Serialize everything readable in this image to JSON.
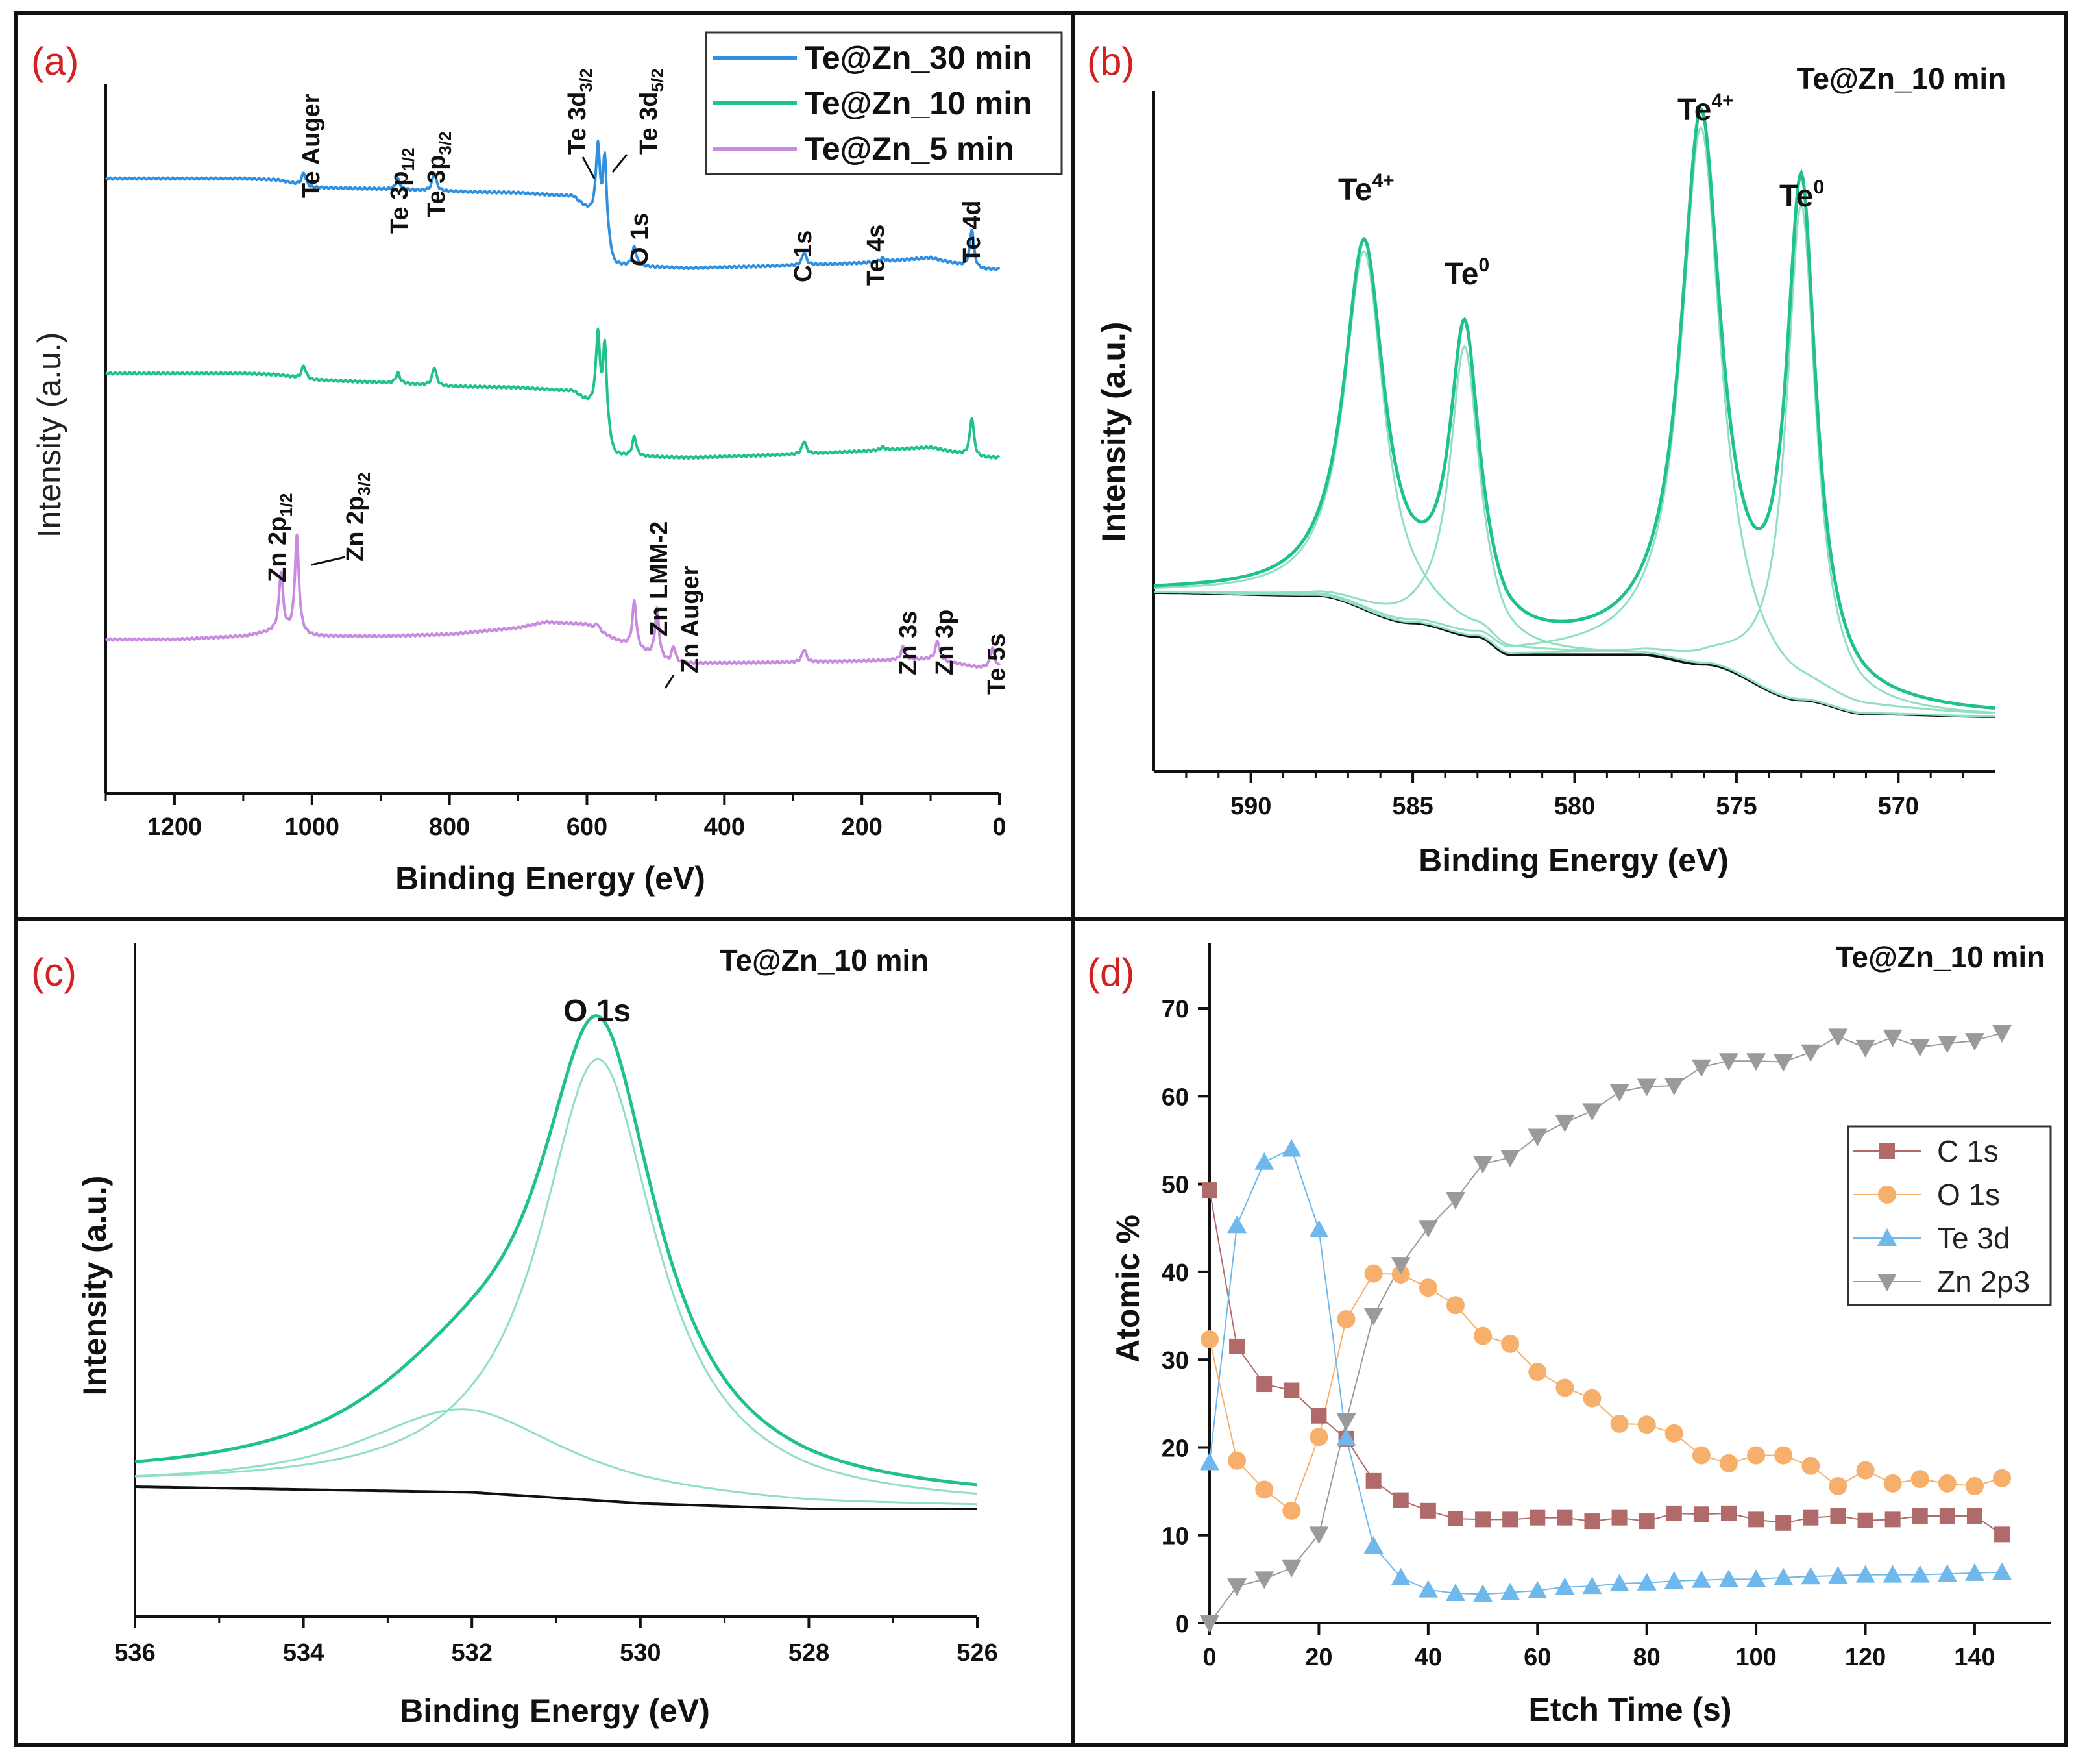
{
  "figure_colors": {
    "te30": "#2f8fe0",
    "te10": "#1fc18c",
    "te5": "#c98be0",
    "comp": "#8fe0bf",
    "bg": "#111111",
    "c1s": "#b06a6a",
    "o1s": "#f6b06c",
    "te3d": "#6fb8ec",
    "zn": "#9a9a9a"
  },
  "chart_data": [
    {
      "id": "a",
      "panel_label": "(a)",
      "type": "line",
      "xlabel": "Binding Energy (eV)",
      "ylabel": "Intensity (a.u.)",
      "x_ticks": [
        "1200",
        "1000",
        "800",
        "600",
        "400",
        "200",
        "0"
      ],
      "xlim": [
        1300,
        0
      ],
      "legend": {
        "position": "top-right",
        "entries": [
          "Te@Zn_30 min",
          "Te@Zn_10 min",
          "Te@Zn_5 min"
        ]
      },
      "series": [
        {
          "name": "Te@Zn_30 min",
          "baseline": [
            [
              1300,
              80
            ],
            [
              1100,
              80
            ],
            [
              1050,
              78
            ],
            [
              1000,
              66
            ],
            [
              900,
              64
            ],
            [
              800,
              60
            ],
            [
              700,
              58
            ],
            [
              620,
              52
            ],
            [
              590,
              20
            ],
            [
              560,
              -55
            ],
            [
              450,
              -58
            ],
            [
              300,
              -54
            ],
            [
              200,
              -50
            ],
            [
              100,
              -42
            ],
            [
              30,
              -60
            ],
            [
              0,
              -60
            ]
          ],
          "peaks": [
            [
              1012,
              20
            ],
            [
              875,
              16
            ],
            [
              822,
              28
            ],
            [
              584,
              120
            ],
            [
              574,
              125
            ],
            [
              531,
              30
            ],
            [
              284,
              20
            ],
            [
              170,
              5
            ],
            [
              40,
              60
            ]
          ]
        },
        {
          "name": "Te@Zn_10 min",
          "baseline": [
            [
              1300,
              70
            ],
            [
              1100,
              70
            ],
            [
              1050,
              68
            ],
            [
              1000,
              60
            ],
            [
              900,
              56
            ],
            [
              800,
              50
            ],
            [
              700,
              48
            ],
            [
              620,
              42
            ],
            [
              590,
              15
            ],
            [
              560,
              -58
            ],
            [
              450,
              -60
            ],
            [
              300,
              -55
            ],
            [
              200,
              -50
            ],
            [
              100,
              -44
            ],
            [
              30,
              -60
            ],
            [
              0,
              -60
            ]
          ],
          "peaks": [
            [
              1012,
              20
            ],
            [
              875,
              16
            ],
            [
              822,
              28
            ],
            [
              584,
              125
            ],
            [
              574,
              130
            ],
            [
              531,
              30
            ],
            [
              284,
              20
            ],
            [
              170,
              5
            ],
            [
              40,
              60
            ]
          ]
        },
        {
          "name": "Te@Zn_5 min",
          "baseline": [
            [
              1300,
              25
            ],
            [
              1200,
              25
            ],
            [
              1100,
              30
            ],
            [
              1050,
              38
            ],
            [
              1000,
              30
            ],
            [
              900,
              30
            ],
            [
              800,
              33
            ],
            [
              700,
              43
            ],
            [
              660,
              52
            ],
            [
              600,
              48
            ],
            [
              560,
              25
            ],
            [
              480,
              -12
            ],
            [
              300,
              -10
            ],
            [
              200,
              -8
            ],
            [
              100,
              -5
            ],
            [
              30,
              -18
            ],
            [
              0,
              -18
            ]
          ],
          "peaks": [
            [
              1045,
              90
            ],
            [
              1022,
              150
            ],
            [
              585,
              10
            ],
            [
              531,
              72
            ],
            [
              498,
              75
            ],
            [
              474,
              25
            ],
            [
              284,
              20
            ],
            [
              140,
              20
            ],
            [
              90,
              30
            ],
            [
              10,
              30
            ]
          ]
        }
      ],
      "annotations_30": [
        "Te Auger",
        "Te 3p1/2",
        "Te 3p3/2",
        "Te 3d3/2",
        "Te 3d5/2",
        "O 1s",
        "C 1s",
        "Te 4s",
        "Te 4d"
      ],
      "annotations_5": [
        "Zn 2p1/2",
        "Zn 2p3/2",
        "Zn LMM-2",
        "Zn Auger",
        "Zn 3s",
        "Zn 3p",
        "Te 5s"
      ]
    },
    {
      "id": "b",
      "panel_label": "(b)",
      "type": "line",
      "title": "Te@Zn_10 min",
      "xlabel": "Binding Energy (eV)",
      "ylabel": "Intensity (a.u.)",
      "x_ticks": [
        "590",
        "585",
        "580",
        "575",
        "570"
      ],
      "xlim": [
        593,
        567
      ],
      "background_steps": [
        [
          593,
          1.0
        ],
        [
          588,
          0.98
        ],
        [
          585,
          0.78
        ],
        [
          583,
          0.68
        ],
        [
          582,
          0.55
        ],
        [
          578,
          0.55
        ],
        [
          576,
          0.48
        ],
        [
          573,
          0.22
        ],
        [
          571,
          0.12
        ],
        [
          567,
          0.1
        ]
      ],
      "peaks": [
        {
          "label": "Te4+",
          "center": 586.5,
          "height": 2.6,
          "width": 0.75
        },
        {
          "label": "Te0",
          "center": 583.4,
          "height": 2.1,
          "width": 0.55
        },
        {
          "label": "Te4+",
          "center": 576.1,
          "height": 3.9,
          "width": 0.75
        },
        {
          "label": "Te0",
          "center": 573.0,
          "height": 3.6,
          "width": 0.55
        }
      ],
      "ylim": [
        0,
        4.8
      ],
      "peak_labels": {
        "te4": "Te",
        "te4_sup": "4+",
        "te0": "Te",
        "te0_sup": "0"
      }
    },
    {
      "id": "c",
      "panel_label": "(c)",
      "type": "line",
      "title": "Te@Zn_10 min",
      "xlabel": "Binding Energy (eV)",
      "ylabel": "Intensity (a.u.)",
      "x_ticks": [
        "536",
        "534",
        "532",
        "530",
        "528",
        "526"
      ],
      "xlim": [
        536,
        526
      ],
      "peak_label": "O 1s",
      "background": [
        [
          536,
          0.0
        ],
        [
          532,
          -0.02
        ],
        [
          530,
          -0.06
        ],
        [
          528,
          -0.08
        ],
        [
          526,
          -0.08
        ]
      ],
      "components": [
        {
          "center": 530.5,
          "height": 1.6,
          "width": 0.85
        },
        {
          "center": 532.1,
          "height": 0.3,
          "width": 1.5
        }
      ],
      "ylim": [
        -0.7,
        2.1
      ]
    },
    {
      "id": "d",
      "panel_label": "(d)",
      "type": "scatter",
      "title": "Te@Zn_10 min",
      "xlabel": "Etch Time (s)",
      "ylabel": "Atomic %",
      "x_ticks": [
        "0",
        "20",
        "40",
        "60",
        "80",
        "100",
        "120",
        "140"
      ],
      "y_ticks": [
        "0",
        "10",
        "20",
        "30",
        "40",
        "50",
        "60",
        "70"
      ],
      "xlim": [
        0,
        150
      ],
      "ylim": [
        0,
        75
      ],
      "x": [
        0,
        5,
        10,
        15,
        20,
        25,
        30,
        35,
        40,
        45,
        50,
        55,
        60,
        65,
        70,
        75,
        80,
        85,
        90,
        95,
        100,
        105,
        110,
        115,
        120,
        125,
        130,
        135,
        140,
        145
      ],
      "legend": {
        "position": "right-middle"
      },
      "series": [
        {
          "name": "C 1s",
          "values": [
            49.3,
            31.5,
            27.2,
            26.5,
            23.6,
            21.0,
            16.2,
            14.0,
            12.8,
            11.9,
            11.8,
            11.8,
            12.0,
            12.0,
            11.6,
            12.0,
            11.6,
            12.5,
            12.4,
            12.5,
            11.8,
            11.4,
            12.0,
            12.2,
            11.7,
            11.8,
            12.2,
            12.2,
            12.2,
            10.1
          ]
        },
        {
          "name": "O 1s",
          "values": [
            32.3,
            18.5,
            15.2,
            12.8,
            21.2,
            34.6,
            39.8,
            39.7,
            38.2,
            36.2,
            32.7,
            31.8,
            28.6,
            26.8,
            25.6,
            22.7,
            22.6,
            21.6,
            19.1,
            18.2,
            19.1,
            19.1,
            17.9,
            15.6,
            17.4,
            15.9,
            16.4,
            15.9,
            15.6,
            16.5
          ]
        },
        {
          "name": "Te 3d",
          "values": [
            18.3,
            45.3,
            52.5,
            54.0,
            44.8,
            21.1,
            8.8,
            5.2,
            3.8,
            3.4,
            3.3,
            3.5,
            3.7,
            4.1,
            4.2,
            4.5,
            4.6,
            4.8,
            4.9,
            5.0,
            5.0,
            5.2,
            5.3,
            5.4,
            5.5,
            5.5,
            5.5,
            5.6,
            5.7,
            5.8
          ]
        },
        {
          "name": "Zn 2p3",
          "values": [
            0.0,
            4.2,
            5.0,
            6.3,
            10.1,
            23.0,
            35.0,
            40.8,
            45.0,
            48.2,
            52.3,
            53.0,
            55.4,
            57.0,
            58.3,
            60.5,
            61.1,
            61.2,
            63.3,
            64.0,
            64.0,
            63.9,
            65.0,
            66.8,
            65.5,
            66.7,
            65.6,
            66.0,
            66.3,
            67.2
          ]
        }
      ]
    }
  ]
}
